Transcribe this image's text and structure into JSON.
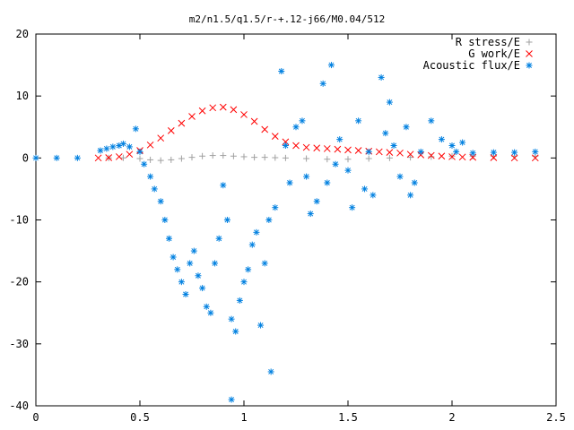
{
  "chart_data": {
    "type": "scatter",
    "title": "m2/n1.5/q1.5/r-+.12-j66/M0.04/512",
    "xlabel": "",
    "ylabel": "",
    "xlim": [
      0,
      2.5
    ],
    "ylim": [
      -40,
      20
    ],
    "x_ticks": [
      "0",
      "0.5",
      "1",
      "1.5",
      "2",
      "2.5"
    ],
    "y_ticks": [
      "20",
      "10",
      "0",
      "-10",
      "-20",
      "-30",
      "-40"
    ],
    "grid": false,
    "legend_position": "top-right",
    "series": [
      {
        "name": "R stress/E",
        "marker": "plus",
        "color": "#a0a0a0",
        "points": [
          [
            0.35,
            0.0
          ],
          [
            0.42,
            0.02
          ],
          [
            0.5,
            -0.1
          ],
          [
            0.55,
            -0.3
          ],
          [
            0.6,
            -0.4
          ],
          [
            0.65,
            -0.3
          ],
          [
            0.7,
            -0.1
          ],
          [
            0.75,
            0.1
          ],
          [
            0.8,
            0.3
          ],
          [
            0.85,
            0.4
          ],
          [
            0.9,
            0.4
          ],
          [
            0.95,
            0.3
          ],
          [
            1.0,
            0.2
          ],
          [
            1.05,
            0.1
          ],
          [
            1.1,
            0.1
          ],
          [
            1.15,
            0.05
          ],
          [
            1.2,
            0.0
          ],
          [
            1.3,
            -0.1
          ],
          [
            1.4,
            -0.2
          ],
          [
            1.5,
            -0.2
          ],
          [
            1.6,
            -0.1
          ],
          [
            1.7,
            0.0
          ],
          [
            1.8,
            0.1
          ],
          [
            1.9,
            0.2
          ],
          [
            2.0,
            0.3
          ],
          [
            2.1,
            0.3
          ],
          [
            2.2,
            0.3
          ],
          [
            2.3,
            0.3
          ],
          [
            2.4,
            0.3
          ]
        ]
      },
      {
        "name": "G work/E",
        "marker": "cross",
        "color": "#ff0000",
        "points": [
          [
            0.3,
            0.0
          ],
          [
            0.35,
            0.05
          ],
          [
            0.4,
            0.2
          ],
          [
            0.45,
            0.6
          ],
          [
            0.5,
            1.2
          ],
          [
            0.55,
            2.1
          ],
          [
            0.6,
            3.2
          ],
          [
            0.65,
            4.4
          ],
          [
            0.7,
            5.6
          ],
          [
            0.75,
            6.7
          ],
          [
            0.8,
            7.6
          ],
          [
            0.85,
            8.1
          ],
          [
            0.9,
            8.2
          ],
          [
            0.95,
            7.8
          ],
          [
            1.0,
            7.0
          ],
          [
            1.05,
            5.9
          ],
          [
            1.1,
            4.6
          ],
          [
            1.15,
            3.5
          ],
          [
            1.2,
            2.6
          ],
          [
            1.25,
            2.0
          ],
          [
            1.3,
            1.7
          ],
          [
            1.35,
            1.6
          ],
          [
            1.4,
            1.5
          ],
          [
            1.45,
            1.4
          ],
          [
            1.5,
            1.3
          ],
          [
            1.55,
            1.2
          ],
          [
            1.6,
            1.1
          ],
          [
            1.65,
            1.0
          ],
          [
            1.7,
            0.9
          ],
          [
            1.75,
            0.8
          ],
          [
            1.8,
            0.6
          ],
          [
            1.85,
            0.5
          ],
          [
            1.9,
            0.4
          ],
          [
            1.95,
            0.3
          ],
          [
            2.0,
            0.2
          ],
          [
            2.05,
            0.15
          ],
          [
            2.1,
            0.1
          ],
          [
            2.2,
            0.05
          ],
          [
            2.3,
            0.0
          ],
          [
            2.4,
            0.0
          ]
        ]
      },
      {
        "name": "Acoustic flux/E",
        "marker": "star",
        "color": "#0080e0",
        "points": [
          [
            0.31,
            1.2
          ],
          [
            0.34,
            1.5
          ],
          [
            0.37,
            1.8
          ],
          [
            0.4,
            2.0
          ],
          [
            0.42,
            2.3
          ],
          [
            0.45,
            1.8
          ],
          [
            0.48,
            4.7
          ],
          [
            0.5,
            1.0
          ],
          [
            0.52,
            -1.0
          ],
          [
            0.55,
            -3.0
          ],
          [
            0.57,
            -5.0
          ],
          [
            0.6,
            -7.0
          ],
          [
            0.62,
            -10.0
          ],
          [
            0.64,
            -13.0
          ],
          [
            0.66,
            -16.0
          ],
          [
            0.68,
            -18.0
          ],
          [
            0.7,
            -20.0
          ],
          [
            0.72,
            -22.0
          ],
          [
            0.74,
            -17.0
          ],
          [
            0.76,
            -15.0
          ],
          [
            0.78,
            -19.0
          ],
          [
            0.8,
            -21.0
          ],
          [
            0.82,
            -24.0
          ],
          [
            0.84,
            -25.0
          ],
          [
            0.86,
            -17.0
          ],
          [
            0.88,
            -13.0
          ],
          [
            0.9,
            -4.4
          ],
          [
            0.92,
            -10.0
          ],
          [
            0.94,
            -26.0
          ],
          [
            0.96,
            -28.0
          ],
          [
            0.98,
            -23.0
          ],
          [
            1.0,
            -20.0
          ],
          [
            1.02,
            -18.0
          ],
          [
            1.04,
            -14.0
          ],
          [
            1.06,
            -12.0
          ],
          [
            1.08,
            -27.0
          ],
          [
            1.1,
            -17.0
          ],
          [
            1.12,
            -10.0
          ],
          [
            1.13,
            -34.5
          ],
          [
            1.15,
            -8.0
          ],
          [
            1.18,
            14.0
          ],
          [
            1.2,
            2.0
          ],
          [
            1.22,
            -4.0
          ],
          [
            1.25,
            5.0
          ],
          [
            1.28,
            6.0
          ],
          [
            1.3,
            -3.0
          ],
          [
            1.32,
            -9.0
          ],
          [
            1.35,
            -7.0
          ],
          [
            1.38,
            12.0
          ],
          [
            1.4,
            -4.0
          ],
          [
            1.42,
            15.0
          ],
          [
            1.44,
            -1.0
          ],
          [
            1.46,
            3.0
          ],
          [
            1.5,
            -2.0
          ],
          [
            1.52,
            -8.0
          ],
          [
            1.55,
            6.0
          ],
          [
            1.58,
            -5.0
          ],
          [
            1.6,
            1.0
          ],
          [
            1.62,
            -6.0
          ],
          [
            1.66,
            13.0
          ],
          [
            1.68,
            4.0
          ],
          [
            1.7,
            9.0
          ],
          [
            1.72,
            2.0
          ],
          [
            1.75,
            -3.0
          ],
          [
            1.78,
            5.0
          ],
          [
            1.8,
            -6.0
          ],
          [
            1.82,
            -4.0
          ],
          [
            1.85,
            1.0
          ],
          [
            1.9,
            6.0
          ],
          [
            1.95,
            3.0
          ],
          [
            2.0,
            2.0
          ],
          [
            2.02,
            1.0
          ],
          [
            2.05,
            2.5
          ],
          [
            2.1,
            0.8
          ],
          [
            2.2,
            0.9
          ],
          [
            2.3,
            0.9
          ],
          [
            2.4,
            1.0
          ],
          [
            0.94,
            -39.0
          ],
          [
            0.2,
            0.0
          ],
          [
            0.1,
            0.0
          ],
          [
            0.0,
            0.0
          ]
        ]
      }
    ]
  }
}
